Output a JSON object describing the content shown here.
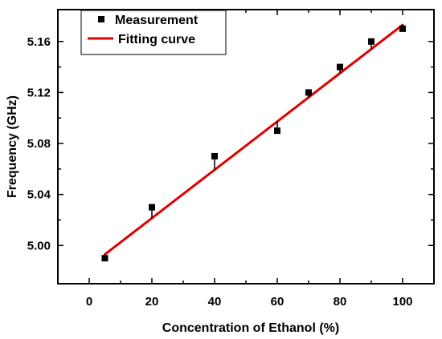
{
  "chart_data": {
    "type": "scatter",
    "title": "",
    "xlabel": "Concentration of Ethanol  (%)",
    "ylabel": "Frequency  (GHz)",
    "xlim": [
      -10,
      110
    ],
    "ylim": [
      4.97,
      5.185
    ],
    "x_ticks": [
      0,
      20,
      40,
      60,
      80,
      100
    ],
    "x_tick_labels": [
      "0",
      "20",
      "40",
      "60",
      "80",
      "100"
    ],
    "y_ticks": [
      5.0,
      5.04,
      5.08,
      5.12,
      5.16
    ],
    "y_tick_labels": [
      "5.00",
      "5.04",
      "5.08",
      "5.12",
      "5.16"
    ],
    "grid": false,
    "legend_position": "top-left",
    "series": [
      {
        "name": "Measurement",
        "kind": "points",
        "color": "#000000",
        "x": [
          5,
          20,
          40,
          60,
          70,
          80,
          90,
          100
        ],
        "y": [
          4.99,
          5.03,
          5.07,
          5.09,
          5.12,
          5.14,
          5.16,
          5.17
        ]
      },
      {
        "name": "Fitting curve",
        "kind": "line",
        "color": "#e00000",
        "x": [
          5,
          100
        ],
        "y": [
          4.993,
          5.173
        ]
      }
    ]
  }
}
